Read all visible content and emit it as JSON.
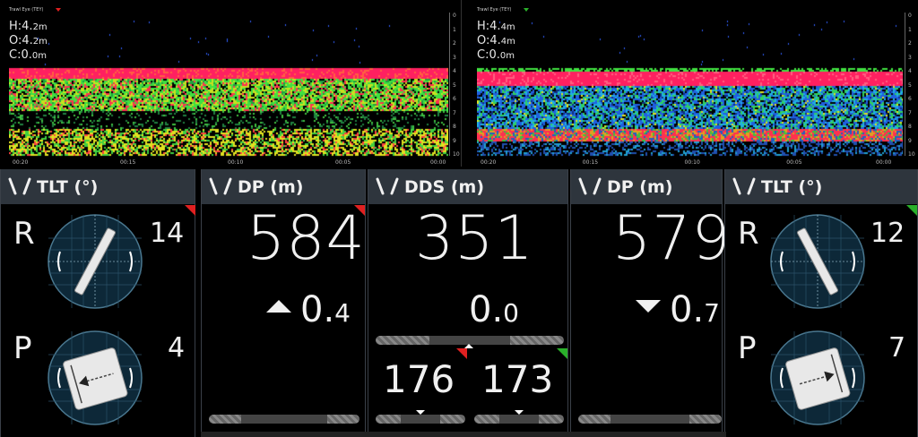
{
  "sounders": [
    {
      "title": "Trawl Eye (TEY)",
      "flag_color": "#e02020",
      "h_label": "H:",
      "h_value": "4.",
      "h_small": "2m",
      "o_label": "O:",
      "o_value": "4.",
      "o_small": "2m",
      "c_label": "C:",
      "c_value": "0.",
      "c_small": "0m",
      "y_ticks": [
        "0",
        "1",
        "2",
        "3",
        "4",
        "5",
        "6",
        "7",
        "8",
        "9",
        "10"
      ],
      "x_ticks": [
        "00:20",
        "00:15",
        "00:10",
        "00:05",
        "00:00"
      ]
    },
    {
      "title": "Trawl Eye (TEY)",
      "flag_color": "#2ab02a",
      "h_label": "H:",
      "h_value": "4.",
      "h_small": "4m",
      "o_label": "O:",
      "o_value": "4.",
      "o_small": "4m",
      "c_label": "C:",
      "c_value": "0.",
      "c_small": "0m",
      "y_ticks": [
        "0",
        "1",
        "2",
        "3",
        "4",
        "5",
        "6",
        "7",
        "8",
        "9",
        "10"
      ],
      "x_ticks": [
        "00:20",
        "00:15",
        "00:10",
        "00:05",
        "00:00"
      ]
    }
  ],
  "panels": {
    "tlt_left": {
      "label": "TLT (°)",
      "r_letter": "R",
      "r_value": "14",
      "p_letter": "P",
      "p_value": "4",
      "flag": "red"
    },
    "dp_left": {
      "label": "DP (m)",
      "value": "584",
      "change_main": "0.",
      "change_small": "4",
      "direction": "up",
      "flag": "red"
    },
    "dds": {
      "label": "DDS (m)",
      "value": "351",
      "change_main": "0.",
      "change_small": "0",
      "left_value": "176",
      "right_value": "173",
      "left_flag": "red",
      "right_flag": "green"
    },
    "dp_right": {
      "label": "DP (m)",
      "value": "579",
      "change_main": "0.",
      "change_small": "7",
      "direction": "down"
    },
    "tlt_right": {
      "label": "TLT (°)",
      "r_letter": "R",
      "r_value": "12",
      "p_letter": "P",
      "p_value": "7",
      "flag": "green"
    }
  }
}
